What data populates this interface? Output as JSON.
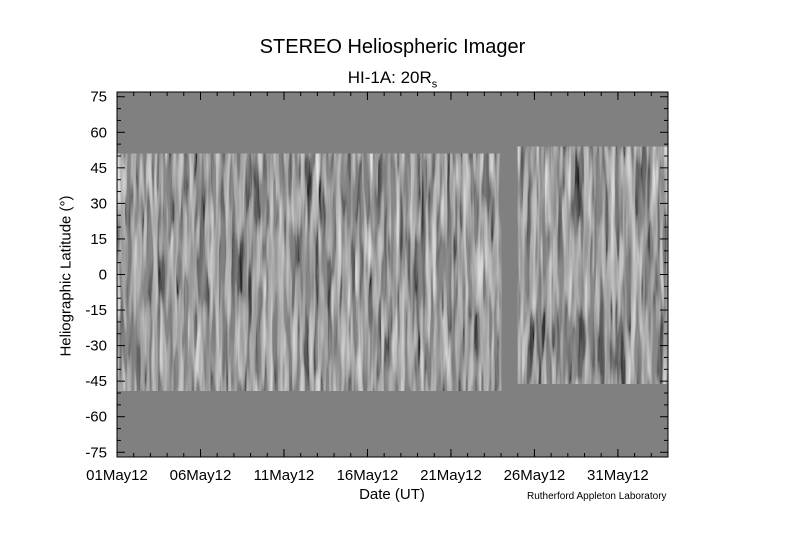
{
  "title": "STEREO Heliospheric Imager",
  "subtitle": {
    "main": "HI-1A: 20R",
    "sub": "s"
  },
  "credit": "Rutherford Appleton Laboratory",
  "chart_data": {
    "type": "heatmap",
    "title": "STEREO Heliospheric Imager",
    "subtitle": "HI-1A: 20Rs",
    "xlabel": "Date (UT)",
    "ylabel": "Heliographic Latitude (°)",
    "xlim": [
      "2012-05-01",
      "2012-06-03"
    ],
    "ylim": [
      -77,
      77
    ],
    "x_ticks": [
      "01May12",
      "06May12",
      "11May12",
      "16May12",
      "21May12",
      "26May12",
      "31May12"
    ],
    "y_ticks": [
      75,
      60,
      45,
      30,
      15,
      0,
      -15,
      -30,
      -45,
      -60,
      -75
    ],
    "colormap": "grayscale",
    "no_data_color": "#808080",
    "data_segments": [
      {
        "start": "2012-05-01",
        "end": "2012-05-24",
        "lat_min": -49,
        "lat_max": 51
      },
      {
        "start": "2012-05-25",
        "end": "2012-06-03",
        "lat_min": -46,
        "lat_max": 54
      }
    ],
    "gap": {
      "start": "2012-05-24",
      "end": "2012-05-25"
    },
    "grid": false,
    "legend": "none"
  }
}
